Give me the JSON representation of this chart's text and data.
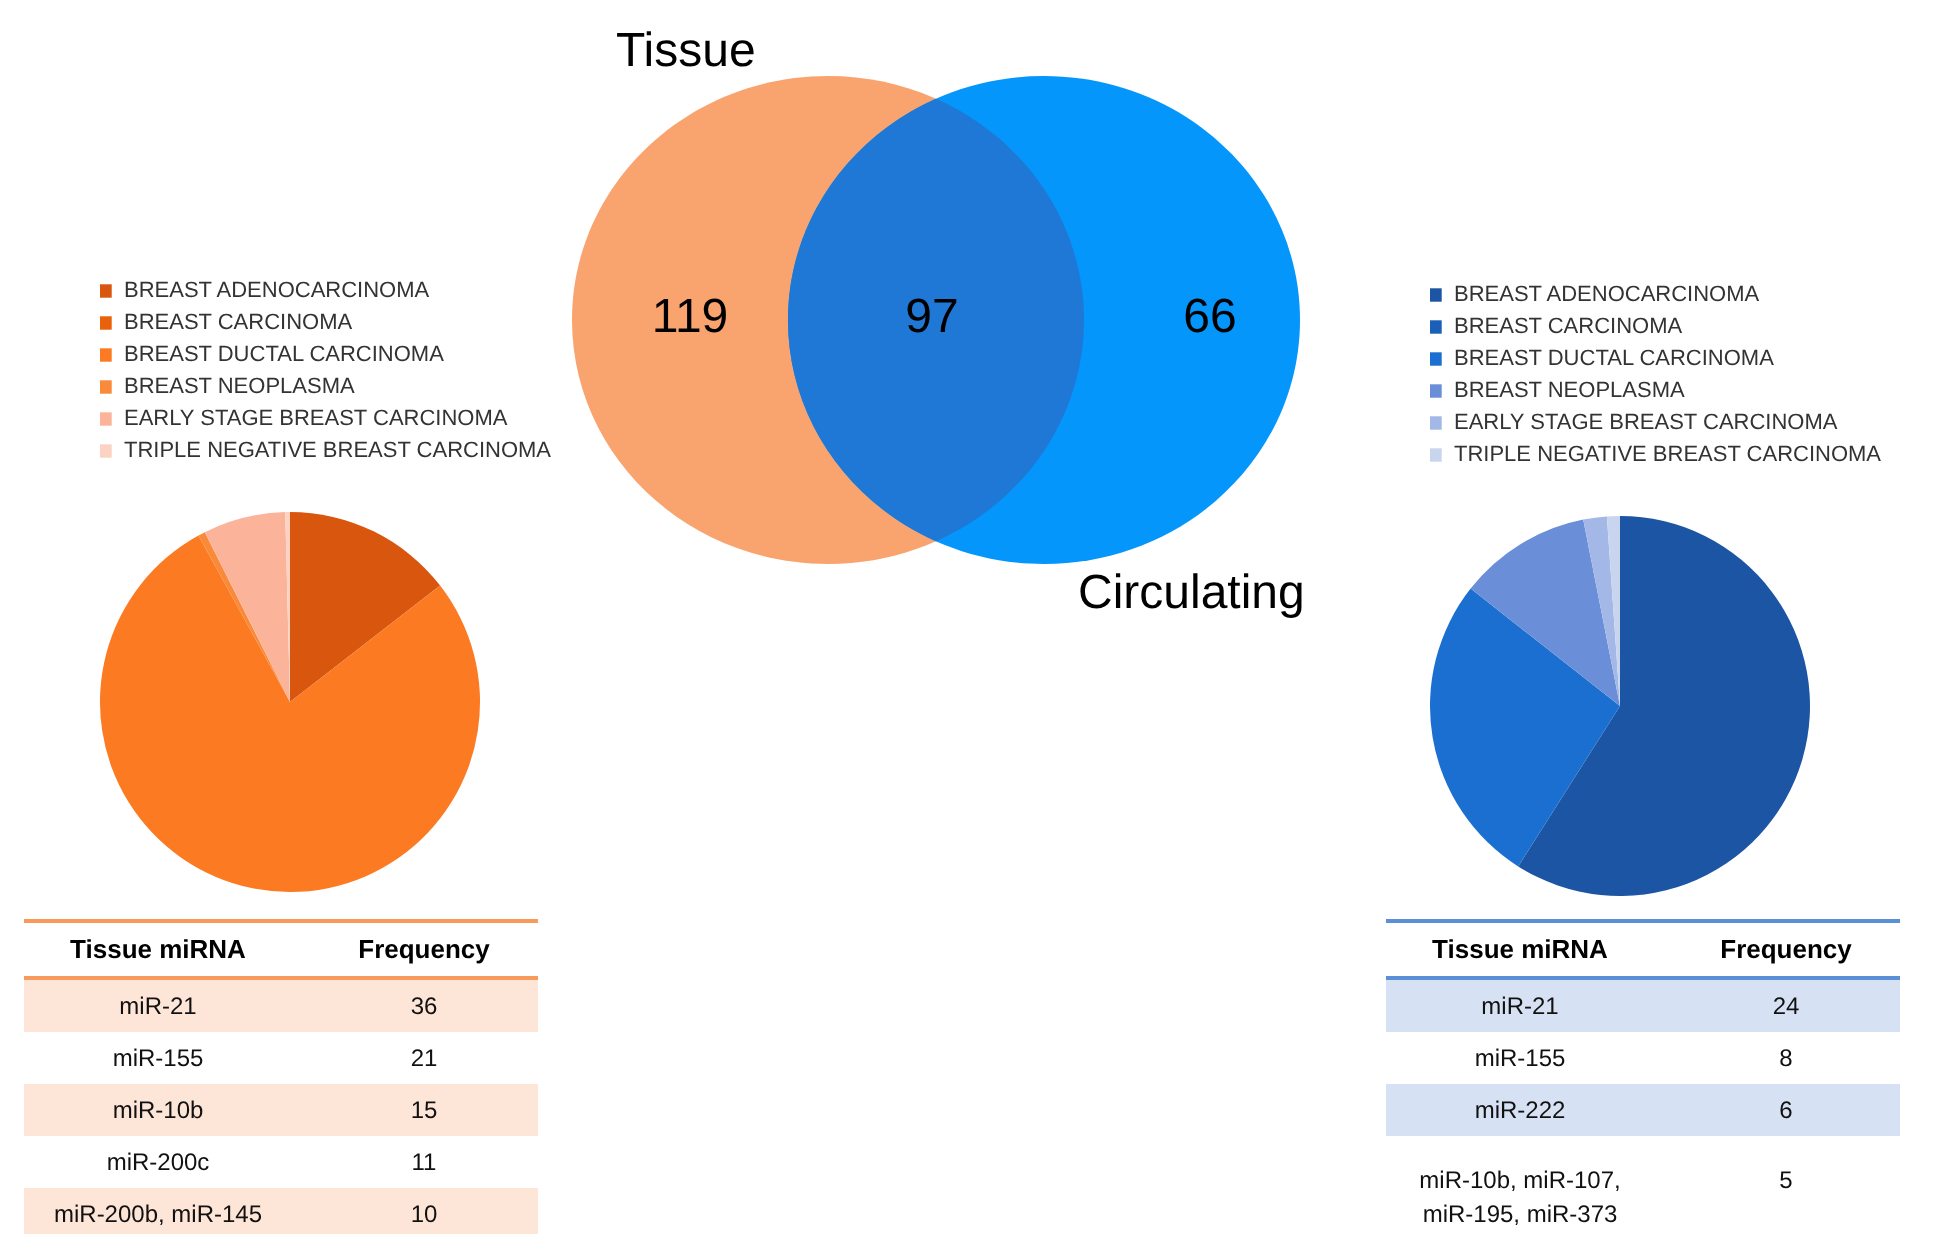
{
  "chart_data": [
    {
      "type": "other",
      "categories": [
        null,
        null,
        null
      ],
      "values": [
        119,
        97,
        66
      ],
      "colors": [
        "#f9a36e",
        "#1f78d6",
        "#0596fc"
      ],
      "data_labels": true,
      "annotations": [
        "Tissue",
        "Circulating"
      ]
    },
    {
      "type": "pie",
      "legend": "top",
      "categories": [
        "BREAST ADENOCARCINOMA",
        "BREAST CARCINOMA",
        "BREAST DUCTAL CARCINOMA",
        "BREAST NEOPLASMA",
        "EARLY STAGE BREAST CARCINOMA",
        "TRIPLE NEGATIVE BREAST CARCINOMA"
      ],
      "values": [
        14.5,
        0,
        77.5,
        0.6,
        7.0,
        0.4
      ],
      "colors": [
        "#d9560f",
        "#e8620c",
        "#fb7a22",
        "#f98a3a",
        "#fbb49a",
        "#fcd2c3"
      ]
    },
    {
      "type": "pie",
      "legend": "top",
      "categories": [
        "BREAST ADENOCARCINOMA",
        "BREAST CARCINOMA",
        "BREAST DUCTAL CARCINOMA",
        "BREAST NEOPLASMA",
        "EARLY STAGE BREAST CARCINOMA",
        "TRIPLE NEGATIVE BREAST CARCINOMA"
      ],
      "values": [
        59.0,
        0,
        26.6,
        11.3,
        2.0,
        1.1
      ],
      "colors": [
        "#1d55a5",
        "#1a5fb8",
        "#1a6fd0",
        "#6a8fd8",
        "#a3b8e6",
        "#c9d5ef"
      ]
    },
    {
      "type": "other",
      "xlabel": "Tissue miRNA",
      "ylabel": "Frequency",
      "categories": [
        "miR-21",
        "miR-155",
        "miR-10b",
        "miR-200c",
        "miR-200b, miR-145"
      ],
      "values": [
        36,
        21,
        15,
        11,
        10
      ],
      "data_labels": true,
      "color": "#f79a5c",
      "colors": [
        "#fde5d8",
        "#ffffff",
        "#fde5d8",
        "#ffffff",
        "#fde5d8"
      ]
    },
    {
      "type": "other",
      "xlabel": "Tissue miRNA",
      "ylabel": "Frequency",
      "categories": [
        "miR-21",
        "miR-155",
        "miR-222",
        "miR-10b, miR-107, miR-195, miR-373"
      ],
      "values": [
        24,
        8,
        6,
        5
      ],
      "data_labels": true,
      "color": "#5b8fd6",
      "colors": [
        "#d6e2f3",
        "#ffffff",
        "#d6e2f3",
        "#ffffff"
      ]
    }
  ]
}
